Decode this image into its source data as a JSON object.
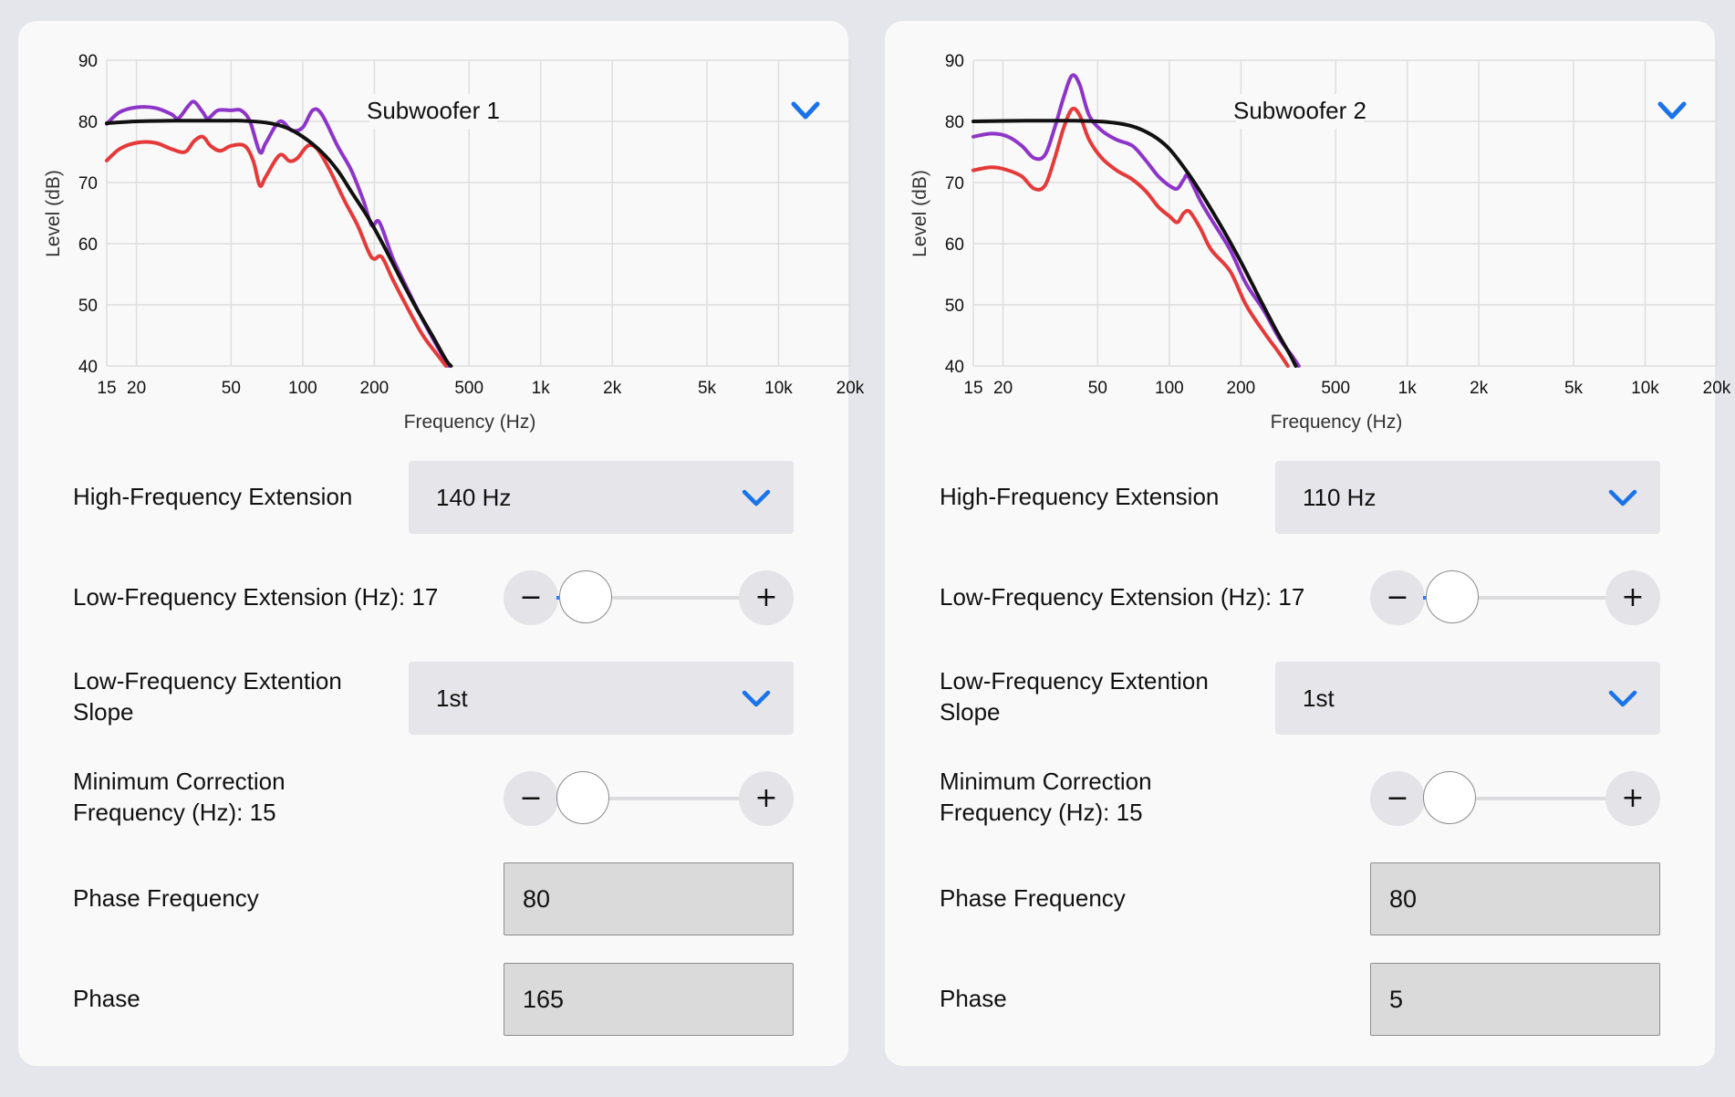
{
  "theme": {
    "background": "#e5e6eb",
    "panel": "#f9f9f9",
    "accent": "#1a73e8",
    "control": "#e6e6ea",
    "input": "#dadada"
  },
  "panels": [
    {
      "title": "Subwoofer 1",
      "menu_icon": "chevron-down-icon",
      "controls": {
        "hf_extension": {
          "label": "High-Frequency Extension",
          "value": "140 Hz"
        },
        "lf_extension": {
          "label": "Low-Frequency Extension (Hz): 17",
          "value": 17,
          "min": 15,
          "max": 120
        },
        "lf_slope": {
          "label_line1": "Low-Frequency Extention",
          "label_line2": "Slope",
          "value": "1st"
        },
        "min_correction": {
          "label_line1": "Minimum Correction",
          "label_line2": "Frequency (Hz): 15",
          "value": 15,
          "min": 15,
          "max": 120
        },
        "phase_frequency": {
          "label": "Phase Frequency",
          "value": "80"
        },
        "phase": {
          "label": "Phase",
          "value": "165"
        },
        "minus": "−",
        "plus": "+"
      }
    },
    {
      "title": "Subwoofer 2",
      "menu_icon": "chevron-down-icon",
      "controls": {
        "hf_extension": {
          "label": "High-Frequency Extension",
          "value": "110 Hz"
        },
        "lf_extension": {
          "label": "Low-Frequency Extension (Hz): 17",
          "value": 17,
          "min": 15,
          "max": 120
        },
        "lf_slope": {
          "label_line1": "Low-Frequency Extention",
          "label_line2": "Slope",
          "value": "1st"
        },
        "min_correction": {
          "label_line1": "Minimum Correction",
          "label_line2": "Frequency (Hz): 15",
          "value": 15,
          "min": 15,
          "max": 120
        },
        "phase_frequency": {
          "label": "Phase Frequency",
          "value": "80"
        },
        "phase": {
          "label": "Phase",
          "value": "5"
        },
        "minus": "−",
        "plus": "+"
      }
    }
  ],
  "chart_data": [
    {
      "type": "line",
      "title": "Subwoofer 1",
      "xlabel": "Frequency (Hz)",
      "ylabel": "Level (dB)",
      "xscale": "log",
      "xlim": [
        15,
        20000
      ],
      "ylim": [
        40,
        90
      ],
      "yticks": [
        40,
        50,
        60,
        70,
        80,
        90
      ],
      "xticks": [
        15,
        20,
        50,
        100,
        200,
        500,
        1000,
        2000,
        5000,
        10000,
        20000
      ],
      "xtick_labels": [
        "15",
        "20",
        "50",
        "100",
        "200",
        "500",
        "1k",
        "2k",
        "5k",
        "10k",
        "20k"
      ],
      "grid": true,
      "series": [
        {
          "color": "#8e35c9",
          "points": [
            [
              15,
              79.6
            ],
            [
              17,
              81.5
            ],
            [
              20,
              82.3
            ],
            [
              24,
              82.2
            ],
            [
              28,
              81.2
            ],
            [
              30,
              80.5
            ],
            [
              33,
              82.5
            ],
            [
              35,
              83.2
            ],
            [
              38,
              81.5
            ],
            [
              40,
              80.5
            ],
            [
              44,
              81.8
            ],
            [
              50,
              81.8
            ],
            [
              55,
              81.8
            ],
            [
              60,
              80
            ],
            [
              66,
              75
            ],
            [
              70,
              76.5
            ],
            [
              80,
              80
            ],
            [
              90,
              78.5
            ],
            [
              100,
              79
            ],
            [
              110,
              81.8
            ],
            [
              120,
              81.2
            ],
            [
              140,
              76
            ],
            [
              160,
              72
            ],
            [
              180,
              67
            ],
            [
              195,
              63
            ],
            [
              210,
              63.5
            ],
            [
              240,
              57.5
            ],
            [
              280,
              52
            ],
            [
              320,
              47.5
            ],
            [
              370,
              43
            ],
            [
              410,
              40
            ]
          ]
        },
        {
          "color": "#e63939",
          "points": [
            [
              15,
              73.6
            ],
            [
              17,
              75.5
            ],
            [
              20,
              76.5
            ],
            [
              24,
              76.5
            ],
            [
              28,
              75.5
            ],
            [
              32,
              75
            ],
            [
              35,
              76.8
            ],
            [
              38,
              77.5
            ],
            [
              41,
              76
            ],
            [
              45,
              75.2
            ],
            [
              50,
              76
            ],
            [
              57,
              76
            ],
            [
              62,
              73.5
            ],
            [
              66,
              69.5
            ],
            [
              70,
              71
            ],
            [
              80,
              74.5
            ],
            [
              88,
              73.5
            ],
            [
              95,
              74
            ],
            [
              105,
              76
            ],
            [
              115,
              75.5
            ],
            [
              130,
              72
            ],
            [
              150,
              67
            ],
            [
              170,
              63
            ],
            [
              190,
              58.5
            ],
            [
              200,
              57.5
            ],
            [
              215,
              57.8
            ],
            [
              240,
              54
            ],
            [
              280,
              49
            ],
            [
              320,
              45
            ],
            [
              365,
              42
            ],
            [
              400,
              40
            ]
          ]
        },
        {
          "color": "#111111",
          "points": [
            [
              15,
              79.7
            ],
            [
              20,
              80
            ],
            [
              30,
              80.1
            ],
            [
              45,
              80.1
            ],
            [
              55,
              80.1
            ],
            [
              70,
              79.8
            ],
            [
              85,
              79
            ],
            [
              100,
              77.5
            ],
            [
              120,
              75
            ],
            [
              140,
              72
            ],
            [
              160,
              68.5
            ],
            [
              190,
              64
            ],
            [
              220,
              59.5
            ],
            [
              260,
              54
            ],
            [
              300,
              49.5
            ],
            [
              350,
              45
            ],
            [
              400,
              41
            ],
            [
              420,
              40
            ]
          ]
        }
      ]
    },
    {
      "type": "line",
      "title": "Subwoofer 2",
      "xlabel": "Frequency (Hz)",
      "ylabel": "Level (dB)",
      "xscale": "log",
      "xlim": [
        15,
        20000
      ],
      "ylim": [
        40,
        90
      ],
      "yticks": [
        40,
        50,
        60,
        70,
        80,
        90
      ],
      "xticks": [
        15,
        20,
        50,
        100,
        200,
        500,
        1000,
        2000,
        5000,
        10000,
        20000
      ],
      "xtick_labels": [
        "15",
        "20",
        "50",
        "100",
        "200",
        "500",
        "1k",
        "2k",
        "5k",
        "10k",
        "20k"
      ],
      "grid": true,
      "series": [
        {
          "color": "#8e35c9",
          "points": [
            [
              15,
              77.5
            ],
            [
              18,
              78
            ],
            [
              21,
              77.5
            ],
            [
              24,
              76
            ],
            [
              27,
              74
            ],
            [
              30,
              74.5
            ],
            [
              33,
              79
            ],
            [
              36,
              84
            ],
            [
              39,
              87.5
            ],
            [
              42,
              86
            ],
            [
              46,
              81
            ],
            [
              52,
              78.5
            ],
            [
              60,
              77
            ],
            [
              70,
              76
            ],
            [
              80,
              73.5
            ],
            [
              90,
              71
            ],
            [
              100,
              69.5
            ],
            [
              108,
              69
            ],
            [
              115,
              70.5
            ],
            [
              120,
              71
            ],
            [
              135,
              67
            ],
            [
              150,
              64
            ],
            [
              180,
              59
            ],
            [
              210,
              53.5
            ],
            [
              250,
              49
            ],
            [
              290,
              44.5
            ],
            [
              330,
              41.5
            ],
            [
              350,
              40
            ]
          ]
        },
        {
          "color": "#e63939",
          "points": [
            [
              15,
              72
            ],
            [
              18,
              72.5
            ],
            [
              21,
              72
            ],
            [
              24,
              71
            ],
            [
              27,
              69
            ],
            [
              30,
              69.5
            ],
            [
              33,
              74
            ],
            [
              36,
              79
            ],
            [
              39,
              82
            ],
            [
              42,
              81
            ],
            [
              46,
              77
            ],
            [
              52,
              74
            ],
            [
              60,
              72
            ],
            [
              70,
              70.5
            ],
            [
              80,
              68.5
            ],
            [
              90,
              66
            ],
            [
              100,
              64.5
            ],
            [
              108,
              63.5
            ],
            [
              115,
              65
            ],
            [
              122,
              65.2
            ],
            [
              135,
              62.5
            ],
            [
              150,
              59
            ],
            [
              180,
              55.5
            ],
            [
              210,
              50
            ],
            [
              250,
              45.5
            ],
            [
              285,
              42.5
            ],
            [
              315,
              40
            ]
          ]
        },
        {
          "color": "#111111",
          "points": [
            [
              15,
              80
            ],
            [
              25,
              80.1
            ],
            [
              40,
              80.1
            ],
            [
              55,
              79.9
            ],
            [
              70,
              79.2
            ],
            [
              85,
              77.7
            ],
            [
              100,
              75.5
            ],
            [
              120,
              71.5
            ],
            [
              140,
              67.5
            ],
            [
              170,
              62
            ],
            [
              200,
              57
            ],
            [
              240,
              51
            ],
            [
              280,
              46
            ],
            [
              320,
              42
            ],
            [
              340,
              40
            ]
          ]
        }
      ]
    }
  ]
}
